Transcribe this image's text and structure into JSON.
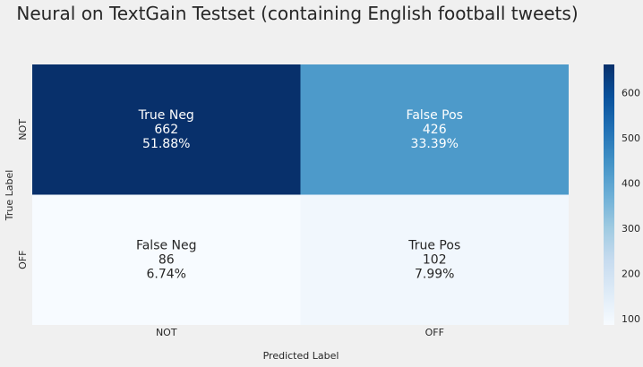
{
  "chart_data": {
    "type": "heatmap",
    "title": "Neural on TextGain Testset (containing English football tweets)",
    "xlabel": "Predicted Label",
    "ylabel": "True Label",
    "x_categories": [
      "NOT",
      "OFF"
    ],
    "y_categories": [
      "NOT",
      "OFF"
    ],
    "cells": [
      [
        {
          "label": "True Neg",
          "count": 662,
          "percent": "51.88%"
        },
        {
          "label": "False Pos",
          "count": 426,
          "percent": "33.39%"
        }
      ],
      [
        {
          "label": "False Neg",
          "count": 86,
          "percent": "6.74%"
        },
        {
          "label": "True Pos",
          "count": 102,
          "percent": "7.99%"
        }
      ]
    ],
    "values": [
      [
        662,
        426
      ],
      [
        86,
        102
      ]
    ],
    "colormap": "Blues",
    "colorbar": {
      "vmin": 86,
      "vmax": 662,
      "ticks": [
        100,
        200,
        300,
        400,
        500,
        600
      ]
    },
    "grid": false
  }
}
